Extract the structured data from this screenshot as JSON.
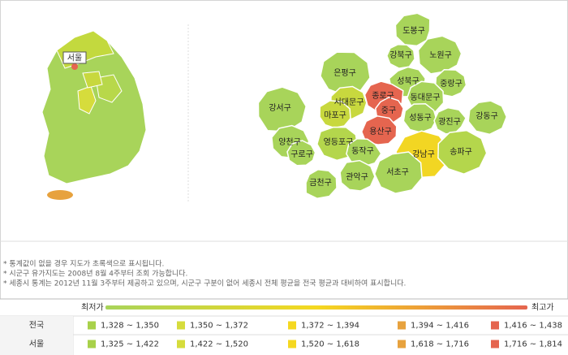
{
  "korea_map": {
    "label": "서울"
  },
  "seoul_map": {
    "districts": [
      {
        "name": "도봉구",
        "color": "#a8d45a"
      },
      {
        "name": "강북구",
        "color": "#a8d45a"
      },
      {
        "name": "노원구",
        "color": "#a8d45a"
      },
      {
        "name": "은평구",
        "color": "#a8d45a"
      },
      {
        "name": "성북구",
        "color": "#a8d45a"
      },
      {
        "name": "중랑구",
        "color": "#a8d45a"
      },
      {
        "name": "종로구",
        "color": "#e5654f"
      },
      {
        "name": "서대문구",
        "color": "#c8d83e"
      },
      {
        "name": "동대문구",
        "color": "#a8d45a"
      },
      {
        "name": "강서구",
        "color": "#a8d45a"
      },
      {
        "name": "마포구",
        "color": "#c8d83e"
      },
      {
        "name": "중구",
        "color": "#e5654f"
      },
      {
        "name": "성동구",
        "color": "#a8d45a"
      },
      {
        "name": "광진구",
        "color": "#a8d45a"
      },
      {
        "name": "강동구",
        "color": "#a8d45a"
      },
      {
        "name": "용산구",
        "color": "#e5654f"
      },
      {
        "name": "양천구",
        "color": "#a8d45a"
      },
      {
        "name": "영등포구",
        "color": "#b4d64c"
      },
      {
        "name": "구로구",
        "color": "#a8d45a"
      },
      {
        "name": "동작구",
        "color": "#a8d45a"
      },
      {
        "name": "강남구",
        "color": "#f2d623"
      },
      {
        "name": "송파구",
        "color": "#b4d64c"
      },
      {
        "name": "금천구",
        "color": "#a8d45a"
      },
      {
        "name": "관악구",
        "color": "#a8d45a"
      },
      {
        "name": "서초구",
        "color": "#a8d45a"
      }
    ]
  },
  "notes": [
    "* 통계값이 없을 경우 지도가 초록색으로 표시됩니다.",
    "* 시군구 유가지도는 2008년 8월 4주부터 조회 가능합니다.",
    "* 세종시 통계는 2012년 11월 3주부터 제공하고 있으며, 시군구 구분이 없어 세종시 전체 평균을 전국 평균과 대비하여 표시합니다."
  ],
  "legend": {
    "low": "최저가",
    "high": "최고가",
    "colors": [
      "#a8d14a",
      "#d6dc3c",
      "#f5d820",
      "#e7a23e",
      "#e5654f"
    ],
    "rows": [
      {
        "region": "전국",
        "ranges": [
          "1,328 ~ 1,350",
          "1,350 ~ 1,372",
          "1,372 ~ 1,394",
          "1,394 ~ 1,416",
          "1,416 ~ 1,438"
        ]
      },
      {
        "region": "서울",
        "ranges": [
          "1,325 ~ 1,422",
          "1,422 ~ 1,520",
          "1,520 ~ 1,618",
          "1,618 ~ 1,716",
          "1,716 ~ 1,814"
        ]
      }
    ]
  }
}
